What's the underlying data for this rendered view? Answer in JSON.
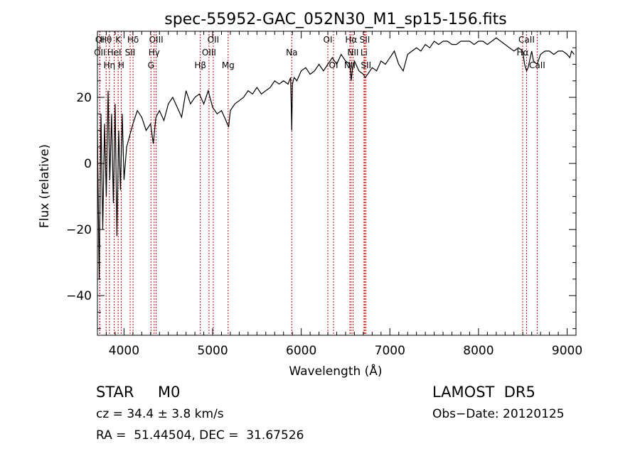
{
  "chart_data": {
    "type": "line",
    "title": "spec-55952-GAC_052N30_M1_sp15-156.fits",
    "xlabel": "Wavelength (Å)",
    "ylabel": "Flux (relative)",
    "xlim": [
      3700,
      9100
    ],
    "ylim": [
      -52,
      40
    ],
    "xticks": [
      "4000",
      "5000",
      "6000",
      "7000",
      "8000",
      "9000"
    ],
    "xtick_values": [
      4000,
      5000,
      6000,
      7000,
      8000,
      9000
    ],
    "yticks": [
      "−40",
      "−20",
      "0",
      "20"
    ],
    "ytick_values": [
      -40,
      -20,
      0,
      20
    ],
    "grid": false,
    "series": [
      {
        "color": "#000000",
        "x": [
          3700,
          3720,
          3740,
          3760,
          3780,
          3800,
          3820,
          3840,
          3860,
          3880,
          3900,
          3920,
          3940,
          3960,
          3980,
          4000,
          4030,
          4060,
          4100,
          4150,
          4200,
          4250,
          4300,
          4330,
          4360,
          4400,
          4450,
          4500,
          4550,
          4600,
          4650,
          4700,
          4750,
          4800,
          4850,
          4900,
          4950,
          5000,
          5050,
          5100,
          5150,
          5180,
          5200,
          5250,
          5300,
          5350,
          5400,
          5450,
          5500,
          5550,
          5600,
          5650,
          5700,
          5750,
          5800,
          5850,
          5880,
          5893,
          5900,
          5920,
          5950,
          6000,
          6050,
          6100,
          6150,
          6200,
          6250,
          6300,
          6350,
          6400,
          6450,
          6500,
          6550,
          6563,
          6580,
          6600,
          6650,
          6700,
          6720,
          6750,
          6800,
          6850,
          6900,
          6950,
          7000,
          7050,
          7100,
          7150,
          7200,
          7250,
          7300,
          7350,
          7400,
          7450,
          7500,
          7550,
          7600,
          7650,
          7700,
          7750,
          7800,
          7850,
          7900,
          7950,
          8000,
          8050,
          8100,
          8150,
          8200,
          8250,
          8300,
          8350,
          8400,
          8450,
          8498,
          8520,
          8542,
          8560,
          8600,
          8620,
          8662,
          8700,
          8750,
          8800,
          8850,
          8900,
          8950,
          9000,
          9030,
          9050,
          9080
        ],
        "y": [
          10,
          -35,
          15,
          -20,
          12,
          -10,
          22,
          -5,
          15,
          -12,
          18,
          -22,
          10,
          -8,
          15,
          -5,
          5,
          8,
          12,
          16,
          14,
          10,
          12,
          6,
          14,
          16,
          13,
          18,
          20,
          17,
          14,
          22,
          18,
          20,
          21,
          18,
          22,
          17,
          15,
          16,
          13,
          11,
          16,
          18,
          19,
          20,
          22,
          21,
          23,
          21,
          22,
          23,
          25,
          24,
          25,
          24,
          26,
          10,
          24,
          26,
          25,
          28,
          29,
          27,
          28,
          30,
          28,
          30,
          32,
          30,
          33,
          31,
          30,
          25,
          29,
          31,
          28,
          27,
          26,
          27,
          29,
          28,
          31,
          30,
          32,
          34,
          30,
          28,
          33,
          34,
          35,
          34,
          36,
          35,
          37,
          36,
          37,
          37,
          36,
          36,
          37,
          37,
          37,
          36,
          37,
          37,
          36,
          37,
          38,
          37,
          36,
          35,
          34,
          35,
          34,
          30,
          28,
          29,
          34,
          31,
          30,
          33,
          34,
          34,
          33,
          34,
          34,
          33,
          32,
          34,
          33
        ]
      }
    ],
    "line_markers": [
      {
        "label": "Hθ",
        "x": 3798
      },
      {
        "label": "K",
        "x": 3934
      },
      {
        "label": "Hδ",
        "x": 4102
      },
      {
        "label": "OIII",
        "x": 4363
      },
      {
        "label": "OII",
        "x": 5007
      },
      {
        "label": "OI",
        "x": 6300
      },
      {
        "label": "Hα",
        "x": 6563
      },
      {
        "label": "SII",
        "x": 6717
      },
      {
        "label": "CaII",
        "x": 8542
      },
      {
        "label": "OI",
        "x": 3727
      },
      {
        "label": "HeI",
        "x": 3889
      },
      {
        "label": "SII",
        "x": 4069
      },
      {
        "label": "Hγ",
        "x": 4340
      },
      {
        "label": "OIII",
        "x": 4959
      },
      {
        "label": "Na",
        "x": 5893
      },
      {
        "label": "NII",
        "x": 6584
      },
      {
        "label": "Li",
        "x": 6708
      },
      {
        "label": "Hα",
        "x": 8498
      },
      {
        "label": "OII",
        "x": 3727
      },
      {
        "label": "Hη",
        "x": 3835
      },
      {
        "label": "H",
        "x": 3968
      },
      {
        "label": "G",
        "x": 4304
      },
      {
        "label": "Hβ",
        "x": 4861
      },
      {
        "label": "Mg",
        "x": 5175
      },
      {
        "label": "OI",
        "x": 6364
      },
      {
        "label": "NII",
        "x": 6548
      },
      {
        "label": "SII",
        "x": 6731
      },
      {
        "label": "CaII",
        "x": 8662
      }
    ]
  },
  "info": {
    "class_line": "STAR     M0",
    "survey": "LAMOST  DR5",
    "cz_line": "cz = 34.4 ± 3.8 km/s",
    "obs_date": "Obs−Date: 20120125",
    "radec_line": "RA =  51.44504, DEC =  31.67526"
  },
  "colors": {
    "spectrum": "#000000",
    "line_markers": "#cc0000",
    "axes": "#000000"
  }
}
